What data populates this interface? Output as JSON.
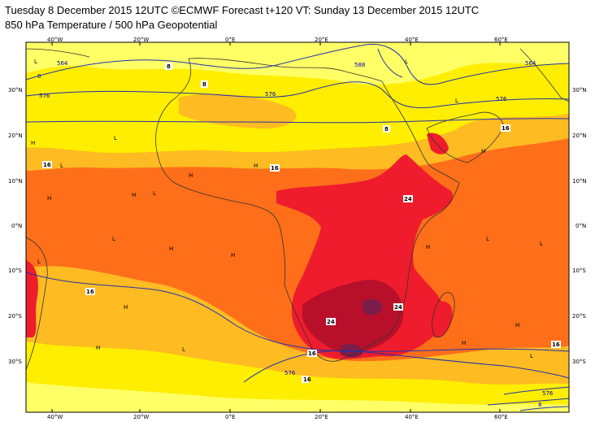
{
  "header": {
    "line1": "Tuesday 8 December 2015 12UTC ©ECMWF Forecast t+120 VT: Sunday 13 December 2015 12UTC",
    "line2": "850 hPa Temperature / 500 hPa Geopotential"
  },
  "axes": {
    "lon_ticks": [
      "40°W",
      "20°W",
      "0°E",
      "20°E",
      "40°E",
      "60°E"
    ],
    "lat_ticks_left": [
      "30°N",
      "20°N",
      "10°N",
      "0°N",
      "10°S",
      "20°S",
      "30°S"
    ],
    "lat_ticks_right": [
      "30°N",
      "20°N",
      "10°N",
      "0°N",
      "10°S",
      "20°S",
      "30°S"
    ]
  },
  "colors": {
    "yellow_light": "#ffff66",
    "yellow": "#ffee00",
    "amber": "#ffbb22",
    "orange": "#ff6f1a",
    "red": "#ee1c2c",
    "dark_red": "#b8102a",
    "purple": "#7a1d4a",
    "geopotential_line": "#2233aa",
    "coastline": "#333333"
  },
  "geopotential_labels": [
    "564",
    "576",
    "576",
    "576",
    "576",
    "576",
    "564",
    "8",
    "588",
    "8"
  ],
  "temperature_labels": [
    "8",
    "8",
    "8",
    "16",
    "16",
    "16",
    "16",
    "16",
    "24",
    "24",
    "24",
    "16",
    "16"
  ],
  "pressure_centres": [
    "H",
    "H",
    "H",
    "H",
    "H",
    "H",
    "H",
    "H",
    "H",
    "H",
    "H",
    "H",
    "H",
    "L",
    "L",
    "L",
    "L",
    "L",
    "L",
    "L",
    "L",
    "L",
    "L",
    "L",
    "L"
  ]
}
